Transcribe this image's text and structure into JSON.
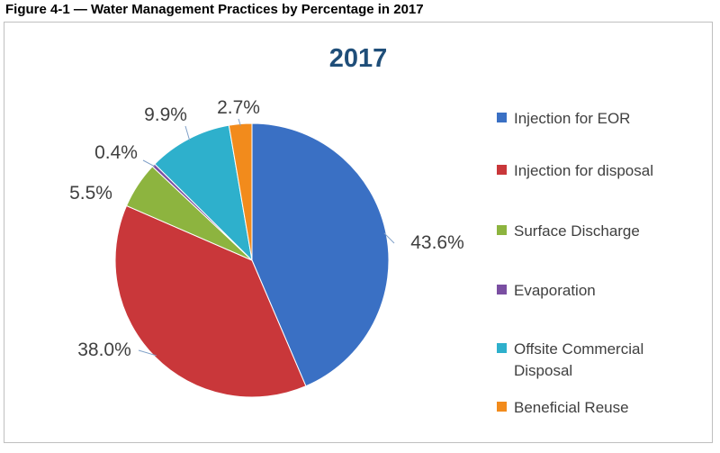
{
  "figure_caption": "Figure 4-1 — Water Management Practices by Percentage in 2017",
  "colors": {
    "injection_eor": "#3a70c4",
    "injection_disposal": "#c9373a",
    "surface_discharge": "#8db43f",
    "evaporation": "#7a4fa2",
    "offsite_commercial": "#2eb0cc",
    "beneficial_reuse": "#f28b1c",
    "title": "#1f4e79",
    "label": "#404040"
  },
  "chart_data": {
    "type": "pie",
    "title": "2017",
    "legend_position": "right",
    "slices": [
      {
        "name": "Injection for EOR",
        "value": 43.6,
        "label": "43.6%",
        "color_key": "injection_eor"
      },
      {
        "name": "Injection for disposal",
        "value": 38.0,
        "label": "38.0%",
        "color_key": "injection_disposal"
      },
      {
        "name": "Surface Discharge",
        "value": 5.5,
        "label": "5.5%",
        "color_key": "surface_discharge"
      },
      {
        "name": "Evaporation",
        "value": 0.4,
        "label": "0.4%",
        "color_key": "evaporation"
      },
      {
        "name": "Offsite Commercial Disposal",
        "value": 9.9,
        "label": "9.9%",
        "color_key": "offsite_commercial"
      },
      {
        "name": "Beneficial Reuse",
        "value": 2.7,
        "label": "2.7%",
        "color_key": "beneficial_reuse"
      }
    ]
  }
}
